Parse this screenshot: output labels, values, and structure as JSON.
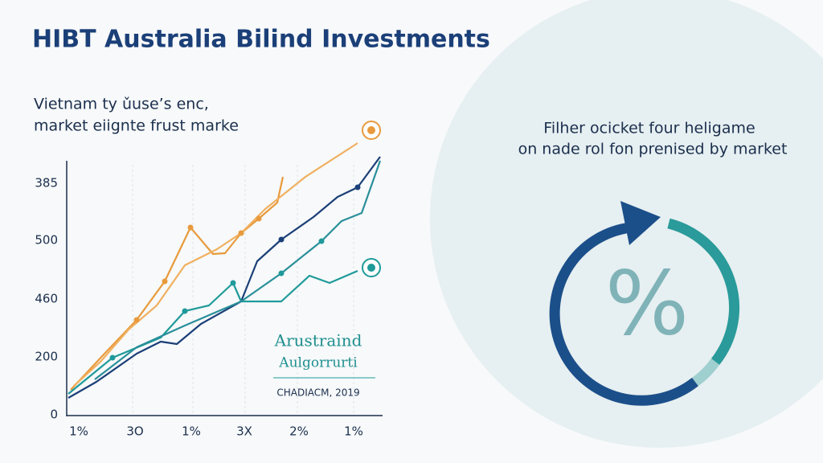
{
  "title": "HIBT Australia Bilind Investments",
  "subtitle": [
    "Vietnam ty ǔuse’s enc,",
    "market eiignte frust marke"
  ],
  "chart": {
    "y_labels": [
      "385",
      "500",
      "460",
      "200",
      "0"
    ],
    "x_labels": [
      "1%",
      "3O",
      "1%",
      "3X",
      "2%",
      "1%"
    ],
    "inset": {
      "lines": [
        "Arustraind",
        "Aulgorrurti"
      ],
      "source": "CHADIACM, 2019"
    }
  },
  "panel": {
    "text": [
      "Filher ocicket four heligame",
      "on nade rol fon prenised by market"
    ],
    "symbol": "%"
  }
}
